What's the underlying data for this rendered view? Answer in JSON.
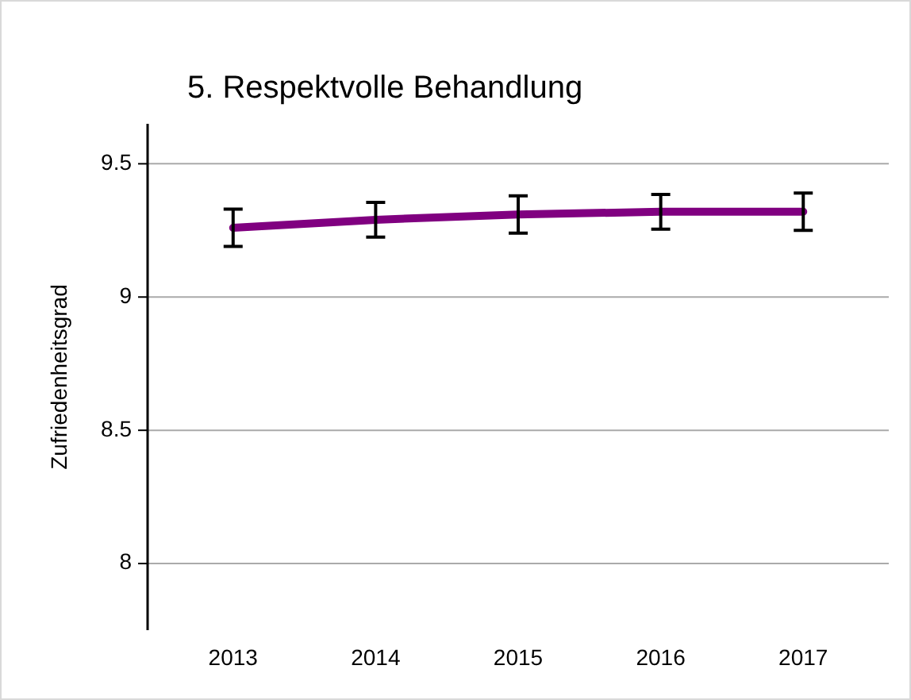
{
  "chart_data": {
    "type": "line",
    "title": "5. Respektvolle Behandlung",
    "ylabel": "Zufriedenheitsgrad",
    "categories": [
      "2013",
      "2014",
      "2015",
      "2016",
      "2017"
    ],
    "series": [
      {
        "color": "#800080",
        "values": [
          9.26,
          9.29,
          9.31,
          9.32,
          9.32
        ],
        "errors": [
          0.07,
          0.065,
          0.07,
          0.065,
          0.07
        ]
      }
    ],
    "ylim": [
      7.75,
      9.65
    ],
    "yticks": [
      {
        "value": 8,
        "label": "8"
      },
      {
        "value": 8.5,
        "label": "8.5"
      },
      {
        "value": 9,
        "label": "9"
      },
      {
        "value": 9.5,
        "label": "9.5"
      }
    ],
    "grid": "y",
    "marker": "none",
    "line_style": "solid"
  }
}
